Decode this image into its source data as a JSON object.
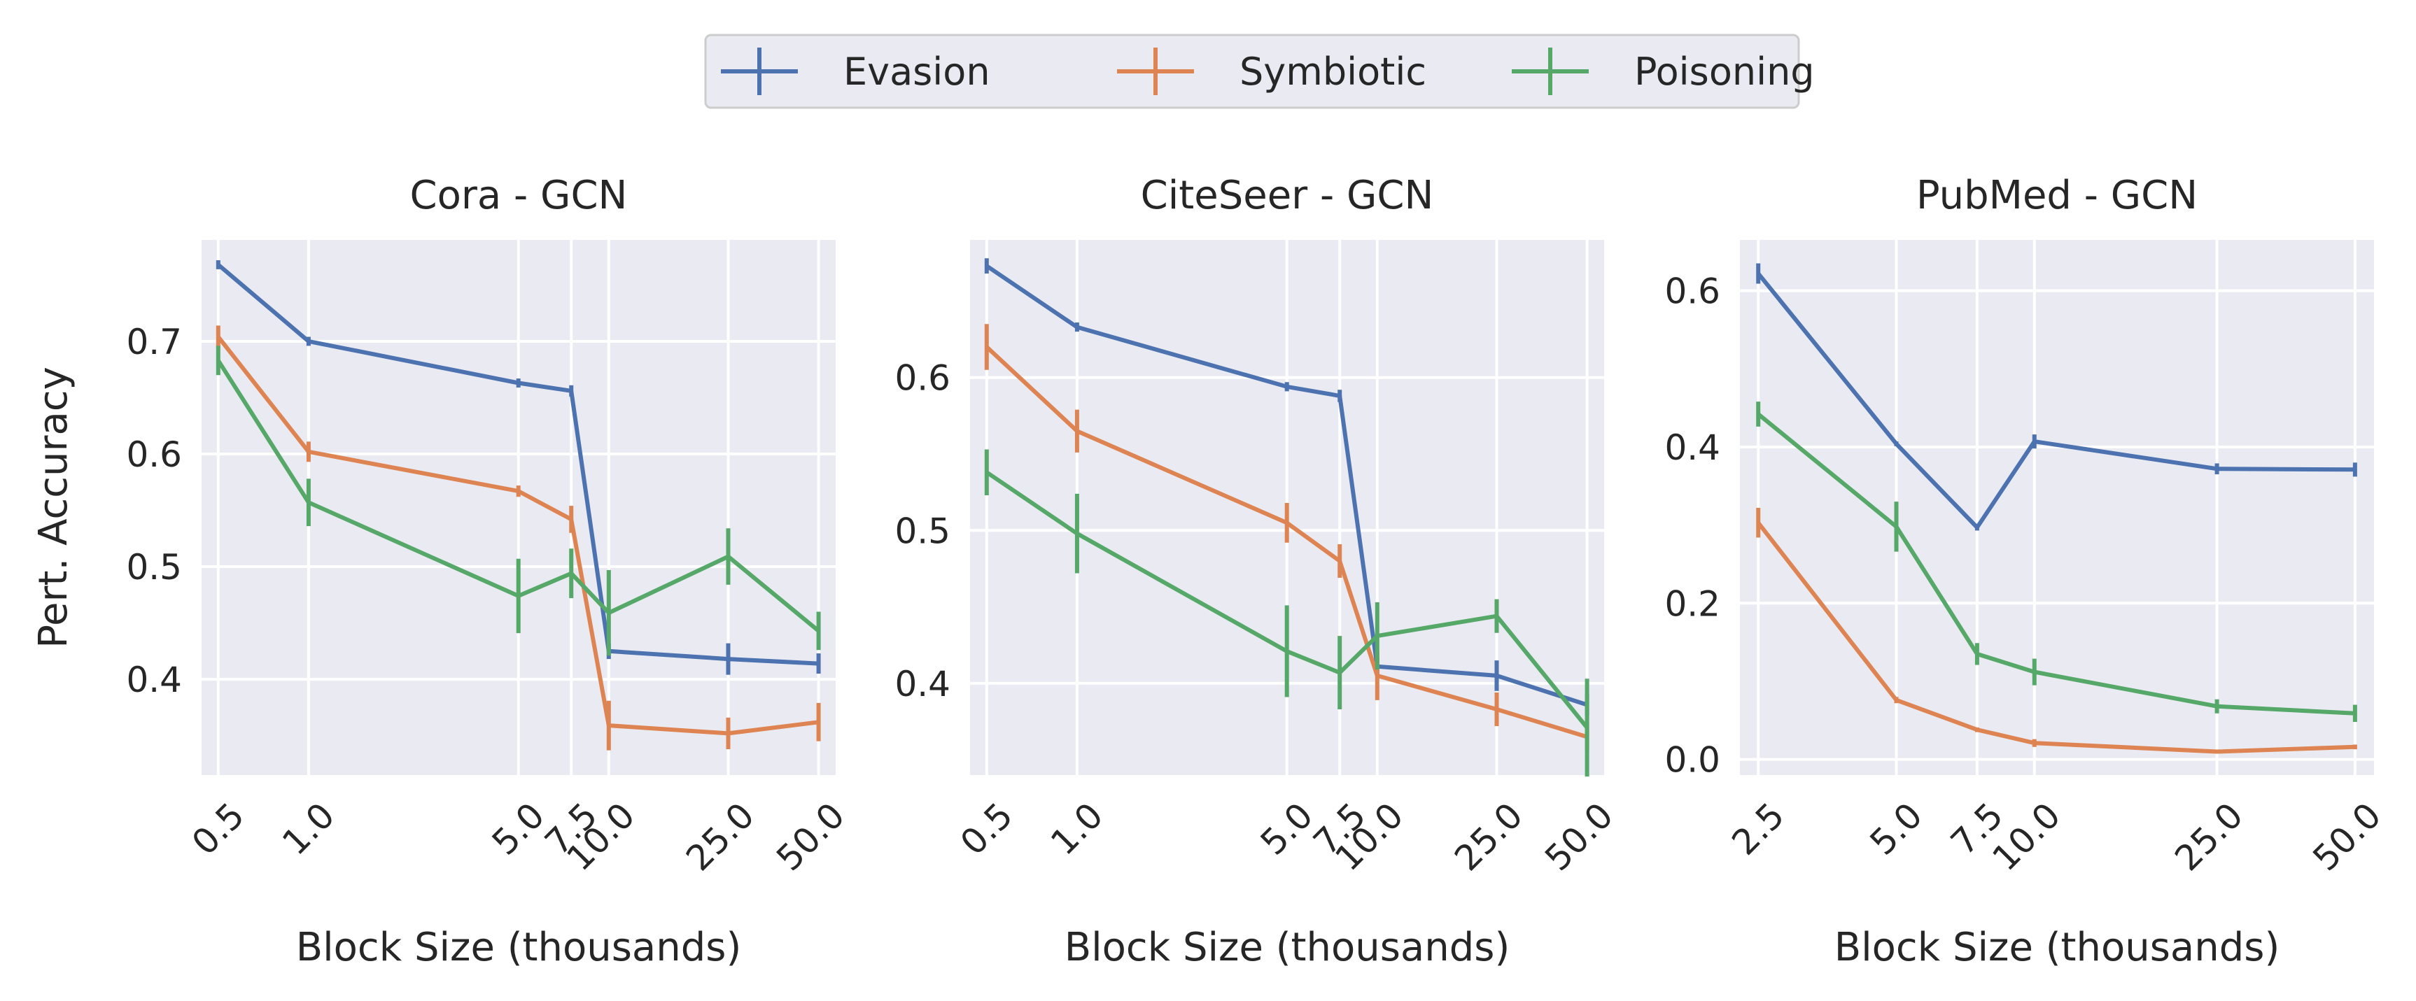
{
  "legend": {
    "placement": "top-center",
    "entries": [
      {
        "name": "Evasion",
        "color": "#4c72b0"
      },
      {
        "name": "Symbiotic",
        "color": "#dd8452"
      },
      {
        "name": "Poisoning",
        "color": "#55a868"
      }
    ]
  },
  "chart_data": [
    {
      "type": "line",
      "title": "Cora - GCN",
      "xlabel": "Block Size (thousands)",
      "ylabel": "Pert. Accuracy",
      "x_scale": "log",
      "xlim": [
        0.44,
        57
      ],
      "ylim": [
        0.315,
        0.79
      ],
      "grid": true,
      "x": [
        0.5,
        1.0,
        5.0,
        7.5,
        10.0,
        25.0,
        50.0
      ],
      "x_tick_labels": [
        "0.5",
        "1.0",
        "5.0",
        "7.5",
        "10.0",
        "25.0",
        "50.0"
      ],
      "y_ticks": [
        0.4,
        0.5,
        0.6,
        0.7
      ],
      "y_tick_labels": [
        "0.4",
        "0.5",
        "0.6",
        "0.7"
      ],
      "series": [
        {
          "name": "Evasion",
          "values": [
            0.768,
            0.7,
            0.663,
            0.656,
            0.425,
            0.418,
            0.414
          ],
          "errors": [
            0.004,
            0.004,
            0.004,
            0.005,
            0.007,
            0.014,
            0.009
          ]
        },
        {
          "name": "Symbiotic",
          "values": [
            0.704,
            0.602,
            0.567,
            0.542,
            0.359,
            0.352,
            0.362
          ],
          "errors": [
            0.01,
            0.009,
            0.005,
            0.012,
            0.022,
            0.014,
            0.017
          ]
        },
        {
          "name": "Poisoning",
          "values": [
            0.683,
            0.557,
            0.474,
            0.494,
            0.459,
            0.509,
            0.443
          ],
          "errors": [
            0.013,
            0.021,
            0.033,
            0.022,
            0.038,
            0.025,
            0.017
          ]
        }
      ]
    },
    {
      "type": "line",
      "title": "CiteSeer - GCN",
      "xlabel": "Block Size (thousands)",
      "ylabel": "",
      "x_scale": "log",
      "xlim": [
        0.44,
        57
      ],
      "ylim": [
        0.34,
        0.69
      ],
      "grid": true,
      "x": [
        0.5,
        1.0,
        5.0,
        7.5,
        10.0,
        25.0,
        50.0
      ],
      "x_tick_labels": [
        "0.5",
        "1.0",
        "5.0",
        "7.5",
        "10.0",
        "25.0",
        "50.0"
      ],
      "y_ticks": [
        0.4,
        0.5,
        0.6
      ],
      "y_tick_labels": [
        "0.4",
        "0.5",
        "0.6"
      ],
      "series": [
        {
          "name": "Evasion",
          "values": [
            0.673,
            0.633,
            0.594,
            0.588,
            0.411,
            0.405,
            0.386
          ],
          "errors": [
            0.005,
            0.003,
            0.003,
            0.004,
            0.006,
            0.01,
            0.007
          ]
        },
        {
          "name": "Symbiotic",
          "values": [
            0.62,
            0.565,
            0.505,
            0.48,
            0.405,
            0.383,
            0.365
          ],
          "errors": [
            0.015,
            0.014,
            0.013,
            0.011,
            0.016,
            0.011,
            0.009
          ]
        },
        {
          "name": "Poisoning",
          "values": [
            0.538,
            0.498,
            0.421,
            0.407,
            0.431,
            0.444,
            0.371
          ],
          "errors": [
            0.015,
            0.026,
            0.03,
            0.024,
            0.022,
            0.011,
            0.032
          ]
        }
      ]
    },
    {
      "type": "line",
      "title": "PubMed - GCN",
      "xlabel": "Block Size (thousands)",
      "ylabel": "",
      "x_scale": "log",
      "xlim": [
        2.28,
        55
      ],
      "ylim": [
        -0.02,
        0.665
      ],
      "grid": true,
      "x": [
        2.5,
        5.0,
        7.5,
        10.0,
        25.0,
        50.0
      ],
      "x_tick_labels": [
        "2.5",
        "5.0",
        "7.5",
        "10.0",
        "25.0",
        "50.0"
      ],
      "y_ticks": [
        0.0,
        0.2,
        0.4,
        0.6
      ],
      "y_tick_labels": [
        "0.0",
        "0.2",
        "0.4",
        "0.6"
      ],
      "series": [
        {
          "name": "Evasion",
          "values": [
            0.622,
            0.404,
            0.297,
            0.407,
            0.372,
            0.371
          ],
          "errors": [
            0.013,
            0.003,
            0.004,
            0.009,
            0.007,
            0.009
          ]
        },
        {
          "name": "Symbiotic",
          "values": [
            0.303,
            0.076,
            0.038,
            0.021,
            0.01,
            0.016
          ],
          "errors": [
            0.019,
            0.004,
            0.003,
            0.005,
            0.002,
            0.003
          ]
        },
        {
          "name": "Poisoning",
          "values": [
            0.442,
            0.298,
            0.135,
            0.112,
            0.068,
            0.059
          ],
          "errors": [
            0.016,
            0.032,
            0.014,
            0.017,
            0.009,
            0.011
          ]
        }
      ]
    }
  ]
}
